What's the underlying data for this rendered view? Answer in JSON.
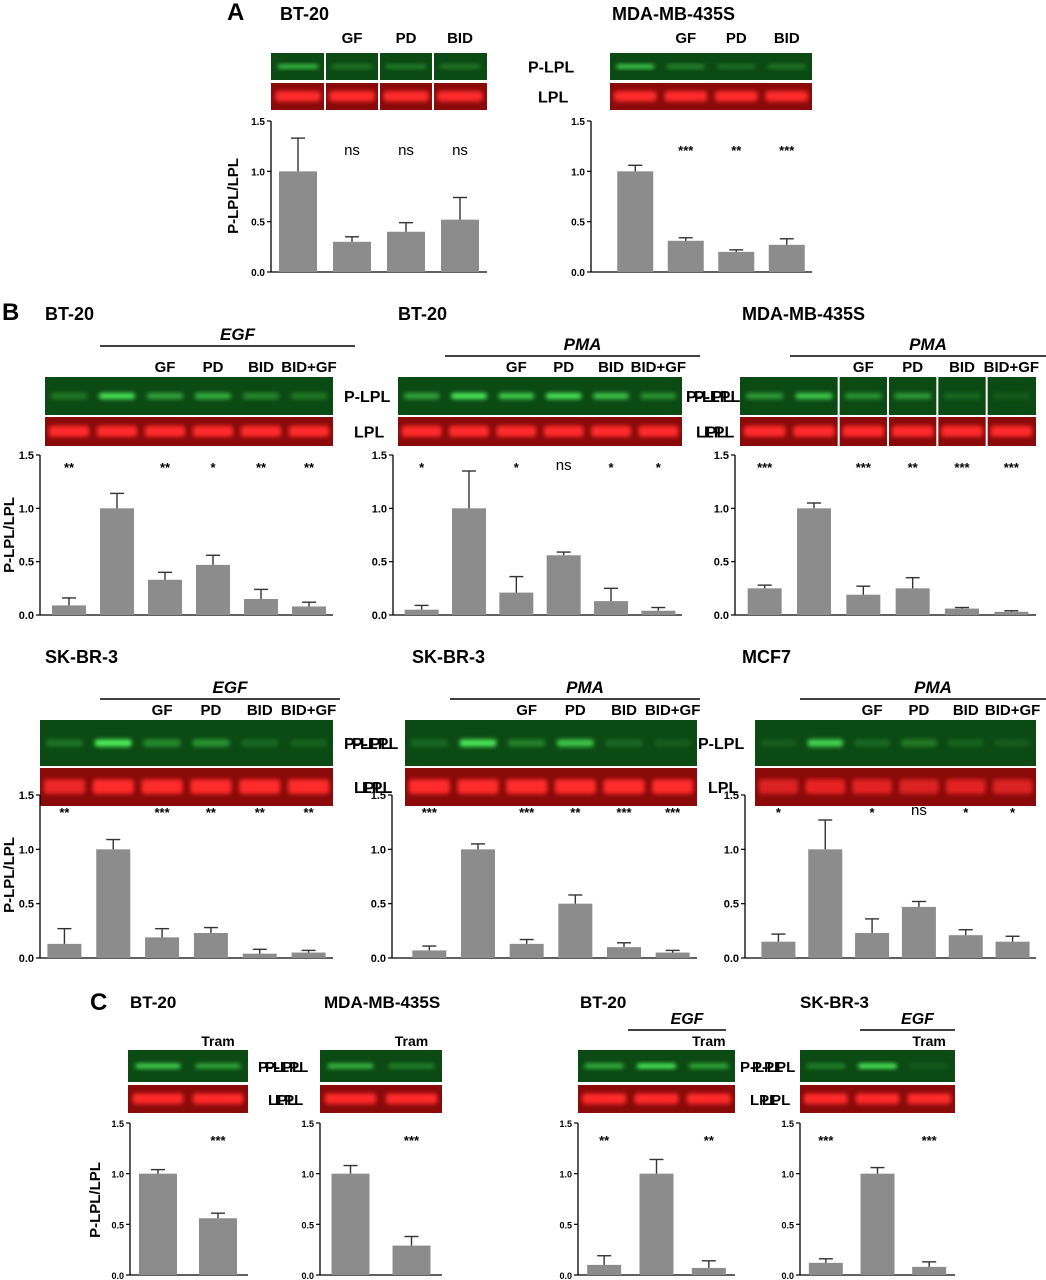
{
  "figure": {
    "panel_labels": {
      "a": "A",
      "b": "B",
      "c": "C"
    },
    "ylabel": "P-LPL/LPL",
    "row_labels": {
      "phospho": "P-LPL",
      "total": "LPL"
    },
    "colors": {
      "bar": "#8c8c8c",
      "green_bg": "#0c4a13",
      "green_band": "#4df05a",
      "red_bg": "#8a0a0a",
      "red_band": "#ff2a2a"
    }
  },
  "chart_data": [
    {
      "id": "A1",
      "type": "bar",
      "title": "BT-20",
      "treatment": "",
      "categories": [
        "",
        "GF",
        "PD",
        "BID"
      ],
      "values": [
        1.0,
        0.3,
        0.4,
        0.52
      ],
      "errors": [
        0.33,
        0.05,
        0.09,
        0.22
      ],
      "significance": [
        "",
        "ns",
        "ns",
        "ns"
      ],
      "ylim": [
        0,
        1.5
      ],
      "yticks": [
        "0.0",
        "0.5",
        "1.0",
        "1.5"
      ],
      "green_intensity": [
        0.75,
        0.3,
        0.35,
        0.3
      ],
      "red_intensity": [
        1,
        1,
        1,
        1
      ],
      "lane_separators": [
        1,
        2,
        3
      ]
    },
    {
      "id": "A2",
      "type": "bar",
      "title": "MDA-MB-435S",
      "treatment": "",
      "categories": [
        "",
        "GF",
        "PD",
        "BID"
      ],
      "values": [
        1.0,
        0.31,
        0.2,
        0.27
      ],
      "errors": [
        0.06,
        0.03,
        0.02,
        0.06
      ],
      "significance": [
        "",
        "***",
        "**",
        "***"
      ],
      "ylim": [
        0,
        1.5
      ],
      "yticks": [
        "0.0",
        "0.5",
        "1.0",
        "1.5"
      ],
      "green_intensity": [
        0.85,
        0.4,
        0.25,
        0.3
      ],
      "red_intensity": [
        1,
        1,
        1,
        1
      ],
      "lane_separators": []
    },
    {
      "id": "B1",
      "type": "bar",
      "title": "BT-20",
      "treatment": "EGF",
      "categories": [
        "",
        "",
        "GF",
        "PD",
        "BID",
        "BID+GF"
      ],
      "values": [
        0.09,
        1.0,
        0.33,
        0.47,
        0.15,
        0.08
      ],
      "errors": [
        0.07,
        0.14,
        0.07,
        0.09,
        0.09,
        0.04
      ],
      "significance": [
        "**",
        "",
        "**",
        "*",
        "**",
        "**"
      ],
      "ylim": [
        0,
        1.5
      ],
      "yticks": [
        "0.0",
        "0.5",
        "1.0",
        "1.5"
      ],
      "green_intensity": [
        0.3,
        0.95,
        0.55,
        0.65,
        0.4,
        0.3
      ],
      "red_intensity": [
        1,
        1,
        1,
        1,
        1,
        1
      ],
      "lane_separators": []
    },
    {
      "id": "B2",
      "type": "bar",
      "title": "BT-20",
      "treatment": "PMA",
      "categories": [
        "",
        "",
        "GF",
        "PD",
        "BID",
        "BID+GF"
      ],
      "values": [
        0.05,
        1.0,
        0.21,
        0.56,
        0.13,
        0.04
      ],
      "errors": [
        0.04,
        0.35,
        0.15,
        0.03,
        0.12,
        0.03
      ],
      "significance": [
        "*",
        "",
        "*",
        "ns",
        "*",
        "*"
      ],
      "ylim": [
        0,
        1.5
      ],
      "yticks": [
        "0.0",
        "0.5",
        "1.0",
        "1.5"
      ],
      "green_intensity": [
        0.55,
        1,
        0.8,
        0.95,
        0.75,
        0.45
      ],
      "red_intensity": [
        1,
        1,
        1,
        1,
        1,
        1
      ],
      "lane_separators": []
    },
    {
      "id": "B3",
      "type": "bar",
      "title": "MDA-MB-435S",
      "treatment": "PMA",
      "categories": [
        "",
        "",
        "GF",
        "PD",
        "BID",
        "BID+GF"
      ],
      "values": [
        0.25,
        1.0,
        0.19,
        0.25,
        0.06,
        0.03
      ],
      "errors": [
        0.03,
        0.05,
        0.08,
        0.1,
        0.01,
        0.01
      ],
      "significance": [
        "***",
        "",
        "***",
        "**",
        "***",
        "***"
      ],
      "ylim": [
        0,
        1.5
      ],
      "yticks": [
        "0.0",
        "0.5",
        "1.0",
        "1.5"
      ],
      "green_intensity": [
        0.5,
        0.8,
        0.45,
        0.5,
        0.2,
        0.1
      ],
      "red_intensity": [
        1,
        1,
        1,
        1,
        1,
        1
      ],
      "lane_separators": [
        2,
        3,
        4,
        5
      ]
    },
    {
      "id": "B4",
      "type": "bar",
      "title": "SK-BR-3",
      "treatment": "EGF",
      "categories": [
        "",
        "",
        "GF",
        "PD",
        "BID",
        "BID+GF"
      ],
      "values": [
        0.13,
        1.0,
        0.19,
        0.23,
        0.04,
        0.05
      ],
      "errors": [
        0.14,
        0.09,
        0.08,
        0.05,
        0.04,
        0.02
      ],
      "significance": [
        "**",
        "",
        "***",
        "**",
        "**",
        "**"
      ],
      "ylim": [
        0,
        1.5
      ],
      "yticks": [
        "0.0",
        "0.5",
        "1.0",
        "1.5"
      ],
      "green_intensity": [
        0.25,
        1,
        0.4,
        0.45,
        0.2,
        0.15
      ],
      "red_intensity": [
        0.85,
        1,
        1,
        1,
        1,
        1
      ],
      "lane_separators": []
    },
    {
      "id": "B5",
      "type": "bar",
      "title": "SK-BR-3",
      "treatment": "PMA",
      "categories": [
        "",
        "",
        "GF",
        "PD",
        "BID",
        "BID+GF"
      ],
      "values": [
        0.07,
        1.0,
        0.13,
        0.5,
        0.1,
        0.05
      ],
      "errors": [
        0.04,
        0.05,
        0.04,
        0.08,
        0.04,
        0.02
      ],
      "significance": [
        "***",
        "",
        "***",
        "**",
        "***",
        "***"
      ],
      "ylim": [
        0,
        1.5
      ],
      "yticks": [
        "0.0",
        "0.5",
        "1.0",
        "1.5"
      ],
      "green_intensity": [
        0.2,
        0.95,
        0.35,
        0.75,
        0.2,
        0.1
      ],
      "red_intensity": [
        1,
        1,
        1,
        1,
        1,
        1
      ],
      "lane_separators": []
    },
    {
      "id": "B6",
      "type": "bar",
      "title": "MCF7",
      "treatment": "PMA",
      "categories": [
        "",
        "",
        "GF",
        "PD",
        "BID",
        "BID+GF"
      ],
      "values": [
        0.15,
        1.0,
        0.23,
        0.47,
        0.21,
        0.15
      ],
      "errors": [
        0.07,
        0.27,
        0.13,
        0.05,
        0.05,
        0.05
      ],
      "significance": [
        "*",
        "",
        "*",
        "ns",
        "*",
        "*"
      ],
      "ylim": [
        0,
        1.5
      ],
      "yticks": [
        "0.0",
        "0.5",
        "1.0",
        "1.5"
      ],
      "green_intensity": [
        0.1,
        0.85,
        0.2,
        0.3,
        0.15,
        0.1
      ],
      "red_intensity": [
        0.7,
        0.8,
        0.75,
        0.7,
        0.75,
        0.7
      ],
      "lane_separators": []
    },
    {
      "id": "C1",
      "type": "bar",
      "title": "BT-20",
      "treatment": "",
      "categories": [
        "",
        "Tram"
      ],
      "values": [
        1.0,
        0.56
      ],
      "errors": [
        0.04,
        0.05
      ],
      "significance": [
        "",
        "***"
      ],
      "ylim": [
        0,
        1.5
      ],
      "yticks": [
        "0.0",
        "0.5",
        "1.0",
        "1.5"
      ],
      "green_intensity": [
        0.85,
        0.6
      ],
      "red_intensity": [
        1,
        1
      ],
      "lane_separators": []
    },
    {
      "id": "C2",
      "type": "bar",
      "title": "MDA-MB-435S",
      "treatment": "",
      "categories": [
        "",
        "Tram"
      ],
      "values": [
        1.0,
        0.29
      ],
      "errors": [
        0.08,
        0.09
      ],
      "significance": [
        "",
        "***"
      ],
      "ylim": [
        0,
        1.5
      ],
      "yticks": [
        "0.0",
        "0.5",
        "1.0",
        "1.5"
      ],
      "green_intensity": [
        0.7,
        0.35
      ],
      "red_intensity": [
        1,
        1
      ],
      "lane_separators": []
    },
    {
      "id": "C3",
      "type": "bar",
      "title": "BT-20",
      "treatment": "EGF",
      "categories": [
        "",
        "",
        "Tram"
      ],
      "values": [
        0.1,
        1.0,
        0.07
      ],
      "errors": [
        0.09,
        0.14,
        0.07
      ],
      "significance": [
        "**",
        "",
        "**"
      ],
      "ylim": [
        0,
        1.5
      ],
      "yticks": [
        "0.0",
        "0.5",
        "1.0",
        "1.5"
      ],
      "green_intensity": [
        0.65,
        1,
        0.6
      ],
      "red_intensity": [
        1,
        1,
        1
      ],
      "lane_separators": []
    },
    {
      "id": "C4",
      "type": "bar",
      "title": "SK-BR-3",
      "treatment": "EGF",
      "categories": [
        "",
        "",
        "Tram"
      ],
      "values": [
        0.12,
        1.0,
        0.08
      ],
      "errors": [
        0.04,
        0.06,
        0.05
      ],
      "significance": [
        "***",
        "",
        "***"
      ],
      "ylim": [
        0,
        1.5
      ],
      "yticks": [
        "0.0",
        "0.5",
        "1.0",
        "1.5"
      ],
      "green_intensity": [
        0.35,
        1,
        0.1
      ],
      "red_intensity": [
        1,
        1,
        1
      ],
      "lane_separators": []
    }
  ]
}
